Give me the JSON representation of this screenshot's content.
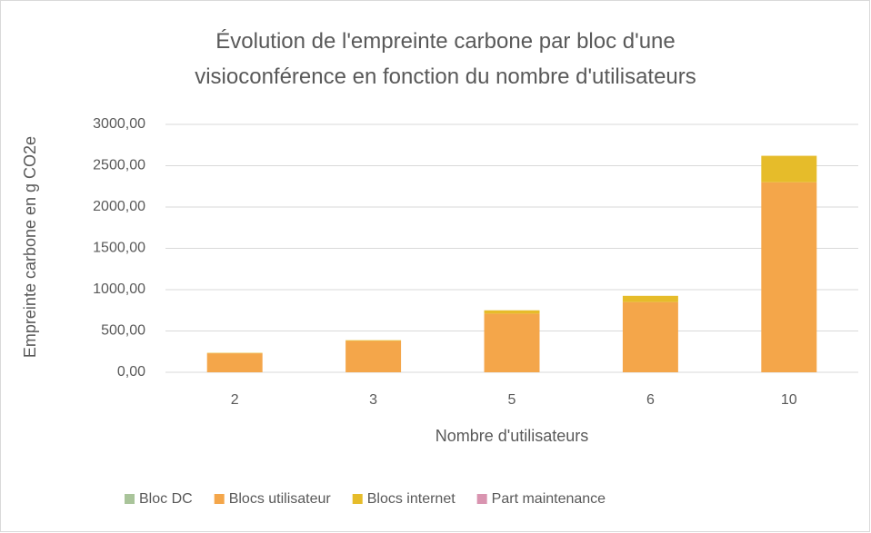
{
  "chart_data": {
    "type": "stacked_bar",
    "title": "Évolution de l'empreinte carbone par bloc d'une visioconférence en fonction du nombre d'utilisateurs",
    "x_label": "Nombre d'utilisateurs",
    "y_label": "Empreinte carbone en g CO2e",
    "categories": [
      "2",
      "3",
      "5",
      "6",
      "10"
    ],
    "series": [
      {
        "name": "Bloc DC",
        "color": "#a9c49a",
        "values": [
          0,
          0,
          0,
          0,
          0
        ]
      },
      {
        "name": "Blocs utilisateur",
        "color": "#f4a64a",
        "values": [
          230,
          380,
          710,
          850,
          2300
        ]
      },
      {
        "name": "Blocs internet",
        "color": "#e6bc2a",
        "values": [
          5,
          8,
          40,
          75,
          320
        ]
      },
      {
        "name": "Part maintenance",
        "color": "#d994b0",
        "values": [
          0,
          0,
          0,
          0,
          0
        ]
      }
    ],
    "ylim": [
      0,
      3000
    ],
    "yticks": [
      {
        "value": 0,
        "label": "0,00"
      },
      {
        "value": 500,
        "label": "500,00"
      },
      {
        "value": 1000,
        "label": "1000,00"
      },
      {
        "value": 1500,
        "label": "1500,00"
      },
      {
        "value": 2000,
        "label": "2000,00"
      },
      {
        "value": 2500,
        "label": "2500,00"
      },
      {
        "value": 3000,
        "label": "3000,00"
      }
    ],
    "grid": true,
    "legend": "bottom"
  }
}
